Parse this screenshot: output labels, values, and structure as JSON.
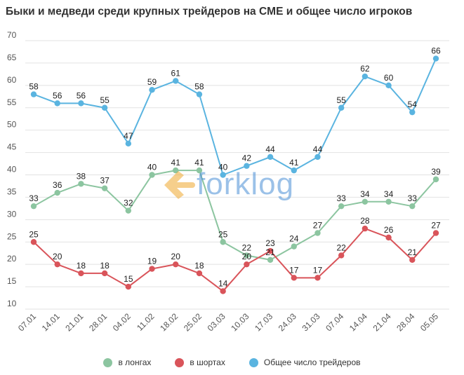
{
  "title": "Быки и медведи среди крупных трейдеров на CME и общее число игроков",
  "watermark": "forklog",
  "chart_data": {
    "type": "line",
    "title": "Быки и медведи среди крупных трейдеров на CME и общее число игроков",
    "categories": [
      "07.01",
      "14.01",
      "21.01",
      "28.01",
      "04.02",
      "11.02",
      "18.02",
      "25.02",
      "03.03",
      "10.03",
      "17.03",
      "24.03",
      "31.03",
      "07.04",
      "14.04",
      "21.04",
      "28.04",
      "05.05"
    ],
    "series": [
      {
        "name": "в лонгах",
        "color": "#8cc5a0",
        "values": [
          33,
          36,
          38,
          37,
          32,
          40,
          41,
          41,
          25,
          22,
          21,
          24,
          27,
          33,
          34,
          34,
          33,
          39
        ]
      },
      {
        "name": "в шортах",
        "color": "#d9545a",
        "values": [
          25,
          20,
          18,
          18,
          15,
          19,
          20,
          18,
          14,
          20,
          23,
          17,
          17,
          22,
          28,
          26,
          21,
          27
        ]
      },
      {
        "name": "Общее число трейдеров",
        "color": "#5ab4e0",
        "values": [
          58,
          56,
          56,
          55,
          47,
          59,
          61,
          58,
          40,
          42,
          44,
          41,
          44,
          55,
          62,
          60,
          54,
          66
        ]
      }
    ],
    "ylim": [
      10,
      70
    ],
    "yticks": [
      10,
      15,
      20,
      25,
      30,
      35,
      40,
      45,
      50,
      55,
      60,
      65,
      70
    ],
    "grid": true,
    "legend_position": "bottom"
  },
  "colors": {
    "grid": "#e2e2e2",
    "long": "#8cc5a0",
    "short": "#d9545a",
    "total": "#5ab4e0",
    "watermark": "#f0a830"
  }
}
